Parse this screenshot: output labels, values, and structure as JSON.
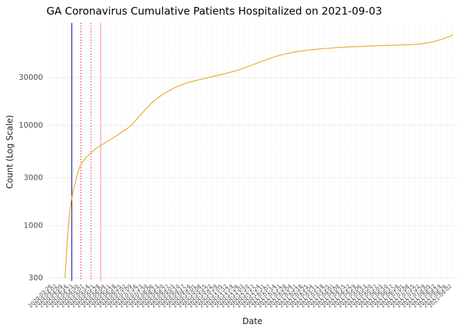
{
  "chart_data": {
    "type": "line",
    "title": "GA Coronavirus Cumulative Patients Hospitalized on 2021-09-03",
    "xlabel": "Date",
    "ylabel": "Count (Log Scale)",
    "y_scale": "log10",
    "ylim": [
      280,
      105000
    ],
    "y_ticks": [
      300,
      1000,
      3000,
      10000,
      30000
    ],
    "y_minor_ticks": [
      550,
      1700,
      5500,
      17000,
      55000
    ],
    "x_domain": [
      "2020-03-26",
      "2021-09-03"
    ],
    "x_tick_labels": [
      "2020-03-26",
      "2020-04-02",
      "2020-04-09",
      "2020-04-16",
      "2020-04-23",
      "2020-04-30",
      "2020-05-07",
      "2020-05-14",
      "2020-05-21",
      "2020-05-28",
      "2020-06-04",
      "2020-06-11",
      "2020-06-18",
      "2020-06-25",
      "2020-07-02",
      "2020-07-09",
      "2020-07-16",
      "2020-07-23",
      "2020-07-30",
      "2020-08-06",
      "2020-08-13",
      "2020-08-20",
      "2020-08-27",
      "2020-09-03",
      "2020-09-10",
      "2020-09-17",
      "2020-09-24",
      "2020-10-01",
      "2020-10-08",
      "2020-10-15",
      "2020-10-22",
      "2020-10-29",
      "2020-11-05",
      "2020-11-12",
      "2020-11-19",
      "2020-11-26",
      "2020-12-03",
      "2020-12-10",
      "2020-12-17",
      "2020-12-24",
      "2020-12-31",
      "2021-01-07",
      "2021-01-14",
      "2021-01-21",
      "2021-01-28",
      "2021-02-04",
      "2021-02-11",
      "2021-02-18",
      "2021-02-25",
      "2021-03-04",
      "2021-03-11",
      "2021-03-18",
      "2021-03-25",
      "2021-04-01",
      "2021-04-08",
      "2021-04-15",
      "2021-04-22",
      "2021-04-29",
      "2021-05-06",
      "2021-05-13",
      "2021-05-20",
      "2021-05-27",
      "2021-06-03",
      "2021-06-10",
      "2021-06-17",
      "2021-06-24",
      "2021-07-01",
      "2021-07-08",
      "2021-07-15",
      "2021-07-22",
      "2021-07-29",
      "2021-08-05",
      "2021-08-12",
      "2021-08-19",
      "2021-08-26",
      "2021-09-02"
    ],
    "series": [
      {
        "name": "cumulative-hospitalized",
        "color": "#E6A117",
        "points": [
          [
            "2020-04-12",
            300
          ],
          [
            "2020-04-14",
            520
          ],
          [
            "2020-04-16",
            900
          ],
          [
            "2020-04-18",
            1300
          ],
          [
            "2020-04-20",
            1700
          ],
          [
            "2020-04-22",
            2100
          ],
          [
            "2020-04-25",
            2600
          ],
          [
            "2020-04-28",
            3200
          ],
          [
            "2020-05-01",
            3800
          ],
          [
            "2020-05-05",
            4300
          ],
          [
            "2020-05-10",
            4800
          ],
          [
            "2020-05-16",
            5300
          ],
          [
            "2020-05-22",
            5800
          ],
          [
            "2020-05-29",
            6300
          ],
          [
            "2020-06-05",
            6800
          ],
          [
            "2020-06-12",
            7300
          ],
          [
            "2020-06-19",
            7900
          ],
          [
            "2020-06-26",
            8600
          ],
          [
            "2020-07-03",
            9300
          ],
          [
            "2020-07-08",
            10000
          ],
          [
            "2020-07-15",
            11500
          ],
          [
            "2020-07-22",
            13200
          ],
          [
            "2020-07-29",
            15000
          ],
          [
            "2020-08-05",
            17000
          ],
          [
            "2020-08-12",
            18800
          ],
          [
            "2020-08-19",
            20500
          ],
          [
            "2020-08-26",
            22000
          ],
          [
            "2020-09-02",
            23500
          ],
          [
            "2020-09-09",
            24800
          ],
          [
            "2020-09-16",
            26000
          ],
          [
            "2020-09-23",
            27000
          ],
          [
            "2020-09-30",
            27900
          ],
          [
            "2020-10-07",
            28700
          ],
          [
            "2020-10-14",
            29500
          ],
          [
            "2020-10-21",
            30400
          ],
          [
            "2020-10-28",
            31300
          ],
          [
            "2020-11-04",
            32200
          ],
          [
            "2020-11-11",
            33200
          ],
          [
            "2020-11-18",
            34300
          ],
          [
            "2020-11-25",
            35500
          ],
          [
            "2020-12-02",
            37000
          ],
          [
            "2020-12-09",
            38700
          ],
          [
            "2020-12-16",
            40500
          ],
          [
            "2020-12-23",
            42500
          ],
          [
            "2020-12-30",
            44500
          ],
          [
            "2021-01-06",
            46500
          ],
          [
            "2021-01-13",
            48500
          ],
          [
            "2021-01-20",
            50200
          ],
          [
            "2021-01-27",
            51700
          ],
          [
            "2021-02-03",
            53000
          ],
          [
            "2021-02-10",
            54100
          ],
          [
            "2021-02-17",
            55100
          ],
          [
            "2021-02-24",
            56000
          ],
          [
            "2021-03-03",
            56800
          ],
          [
            "2021-03-10",
            57500
          ],
          [
            "2021-03-17",
            58100
          ],
          [
            "2021-03-24",
            58700
          ],
          [
            "2021-03-31",
            59200
          ],
          [
            "2021-04-07",
            59700
          ],
          [
            "2021-04-14",
            60100
          ],
          [
            "2021-04-21",
            60500
          ],
          [
            "2021-04-28",
            60900
          ],
          [
            "2021-05-05",
            61200
          ],
          [
            "2021-05-12",
            61500
          ],
          [
            "2021-05-19",
            61800
          ],
          [
            "2021-05-26",
            62100
          ],
          [
            "2021-06-02",
            62400
          ],
          [
            "2021-06-09",
            62700
          ],
          [
            "2021-06-16",
            62900
          ],
          [
            "2021-06-23",
            63100
          ],
          [
            "2021-06-30",
            63400
          ],
          [
            "2021-07-07",
            63700
          ],
          [
            "2021-07-14",
            64100
          ],
          [
            "2021-07-21",
            64700
          ],
          [
            "2021-07-28",
            65600
          ],
          [
            "2021-08-04",
            67000
          ],
          [
            "2021-08-11",
            69000
          ],
          [
            "2021-08-18",
            71500
          ],
          [
            "2021-08-25",
            74500
          ],
          [
            "2021-09-01",
            78000
          ],
          [
            "2021-09-03",
            80000
          ]
        ]
      }
    ],
    "reference_lines": [
      {
        "name": "blue-reference-line",
        "date": "2020-04-21",
        "color": "#00008B",
        "style": "solid"
      },
      {
        "name": "red-dotted-reference-line-1",
        "date": "2020-05-03",
        "color": "#CC0000",
        "style": "dotted"
      },
      {
        "name": "red-dotted-reference-line-2",
        "date": "2020-05-16",
        "color": "#B22222",
        "style": "dotted"
      },
      {
        "name": "pink-reference-line",
        "date": "2020-05-29",
        "color": "#FF8FA3",
        "style": "solid"
      }
    ],
    "grid": {
      "major_color": "#EBEBEB",
      "minor_color": "#F5F5F5",
      "x_color": "#F2F2F2"
    },
    "background": "#FFFFFF",
    "text_colors": {
      "title": "#000000",
      "tick_labels": "#4D4D4D",
      "axis_titles": "#1A1A1A"
    }
  }
}
